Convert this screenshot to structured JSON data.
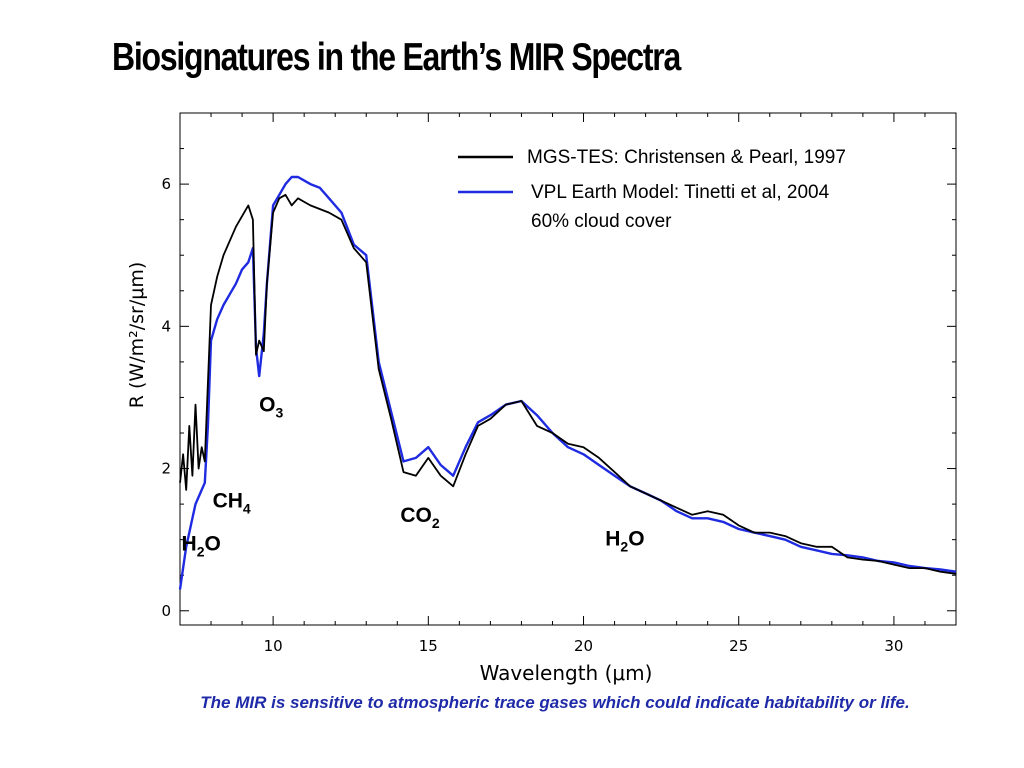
{
  "slide": {
    "title": "Biosignatures in the Earth’s MIR Spectra",
    "caption": "The MIR is sensitive to atmospheric trace gases which could indicate habitability or life."
  },
  "chart_data": {
    "type": "line",
    "xlabel": "Wavelength (μm)",
    "ylabel": "R (W/m²/sr/μm)",
    "xlim": [
      7,
      32
    ],
    "ylim": [
      -0.2,
      7.0
    ],
    "xticks": [
      10,
      15,
      20,
      25,
      30
    ],
    "yticks": [
      0,
      2,
      4,
      6
    ],
    "grid": false,
    "legend_position": "top-right",
    "legend": [
      {
        "label": "MGS-TES: Christensen & Pearl, 1997",
        "color": "#000000"
      },
      {
        "label": "VPL Earth Model: Tinetti et al, 2004",
        "color": "#1f2be0"
      },
      {
        "label": "60% cloud cover",
        "color": ""
      }
    ],
    "annotations": [
      {
        "base": "O",
        "sub": "3",
        "x": 9.55,
        "y": 2.8
      },
      {
        "base": "CH",
        "sub": "4",
        "x": 8.05,
        "y": 1.45
      },
      {
        "base": "H",
        "sub": "2",
        "rest": "O",
        "x": 7.05,
        "y": 0.85
      },
      {
        "base": "CO",
        "sub": "2",
        "x": 14.1,
        "y": 1.25
      },
      {
        "base": "H",
        "sub": "2",
        "rest": "O",
        "x": 20.7,
        "y": 0.92
      }
    ],
    "series": [
      {
        "name": "MGS-TES: Christensen & Pearl, 1997",
        "color": "#000000",
        "x": [
          7.0,
          7.1,
          7.2,
          7.3,
          7.4,
          7.5,
          7.6,
          7.7,
          7.8,
          7.9,
          8.0,
          8.2,
          8.4,
          8.6,
          8.8,
          9.0,
          9.2,
          9.35,
          9.45,
          9.55,
          9.7,
          9.8,
          10.0,
          10.2,
          10.4,
          10.6,
          10.8,
          11.0,
          11.2,
          11.5,
          11.8,
          12.2,
          12.6,
          13.0,
          13.4,
          13.8,
          14.2,
          14.6,
          15.0,
          15.4,
          15.8,
          16.2,
          16.6,
          17.0,
          17.5,
          18.0,
          18.5,
          19.0,
          19.5,
          20.0,
          20.5,
          21.0,
          21.5,
          22.0,
          22.5,
          23.0,
          23.5,
          24.0,
          24.5,
          25.0,
          25.5,
          26.0,
          26.5,
          27.0,
          27.5,
          28.0,
          28.5,
          29.0,
          29.5,
          30.0,
          30.5,
          31.0,
          31.5,
          32.0
        ],
        "y": [
          1.8,
          2.2,
          1.7,
          2.6,
          1.9,
          2.9,
          2.0,
          2.3,
          2.1,
          3.2,
          4.3,
          4.7,
          5.0,
          5.2,
          5.4,
          5.55,
          5.7,
          5.5,
          3.6,
          3.8,
          3.65,
          4.6,
          5.6,
          5.8,
          5.85,
          5.7,
          5.8,
          5.75,
          5.7,
          5.65,
          5.6,
          5.5,
          5.1,
          4.9,
          3.4,
          2.7,
          1.95,
          1.9,
          2.15,
          1.9,
          1.75,
          2.2,
          2.6,
          2.7,
          2.9,
          2.95,
          2.6,
          2.5,
          2.35,
          2.3,
          2.15,
          1.95,
          1.75,
          1.65,
          1.55,
          1.45,
          1.35,
          1.4,
          1.35,
          1.2,
          1.1,
          1.1,
          1.05,
          0.95,
          0.9,
          0.9,
          0.75,
          0.72,
          0.7,
          0.65,
          0.6,
          0.6,
          0.55,
          0.52
        ]
      },
      {
        "name": "VPL Earth Model: Tinetti et al, 2004",
        "color": "#1f2be0",
        "x": [
          7.0,
          7.1,
          7.2,
          7.3,
          7.4,
          7.5,
          7.6,
          7.7,
          7.8,
          7.9,
          8.0,
          8.2,
          8.4,
          8.6,
          8.8,
          9.0,
          9.2,
          9.35,
          9.45,
          9.55,
          9.7,
          9.8,
          10.0,
          10.2,
          10.4,
          10.6,
          10.8,
          11.0,
          11.2,
          11.5,
          11.8,
          12.2,
          12.6,
          13.0,
          13.4,
          13.8,
          14.2,
          14.6,
          15.0,
          15.4,
          15.8,
          16.2,
          16.6,
          17.0,
          17.5,
          18.0,
          18.5,
          19.0,
          19.5,
          20.0,
          20.5,
          21.0,
          21.5,
          22.0,
          22.5,
          23.0,
          23.5,
          24.0,
          24.5,
          25.0,
          25.5,
          26.0,
          26.5,
          27.0,
          27.5,
          28.0,
          28.5,
          29.0,
          29.5,
          30.0,
          30.5,
          31.0,
          31.5,
          32.0
        ],
        "y": [
          0.3,
          0.6,
          0.9,
          1.1,
          1.3,
          1.5,
          1.6,
          1.7,
          1.8,
          2.6,
          3.8,
          4.1,
          4.3,
          4.45,
          4.6,
          4.8,
          4.9,
          5.1,
          3.7,
          3.3,
          3.9,
          4.6,
          5.7,
          5.85,
          6.0,
          6.1,
          6.1,
          6.05,
          6.0,
          5.95,
          5.8,
          5.6,
          5.15,
          5.0,
          3.5,
          2.8,
          2.1,
          2.15,
          2.3,
          2.05,
          1.9,
          2.3,
          2.65,
          2.75,
          2.9,
          2.95,
          2.75,
          2.5,
          2.3,
          2.2,
          2.05,
          1.9,
          1.75,
          1.65,
          1.55,
          1.4,
          1.3,
          1.3,
          1.25,
          1.15,
          1.1,
          1.05,
          1.0,
          0.9,
          0.85,
          0.8,
          0.78,
          0.75,
          0.7,
          0.68,
          0.63,
          0.6,
          0.58,
          0.55
        ]
      }
    ]
  }
}
